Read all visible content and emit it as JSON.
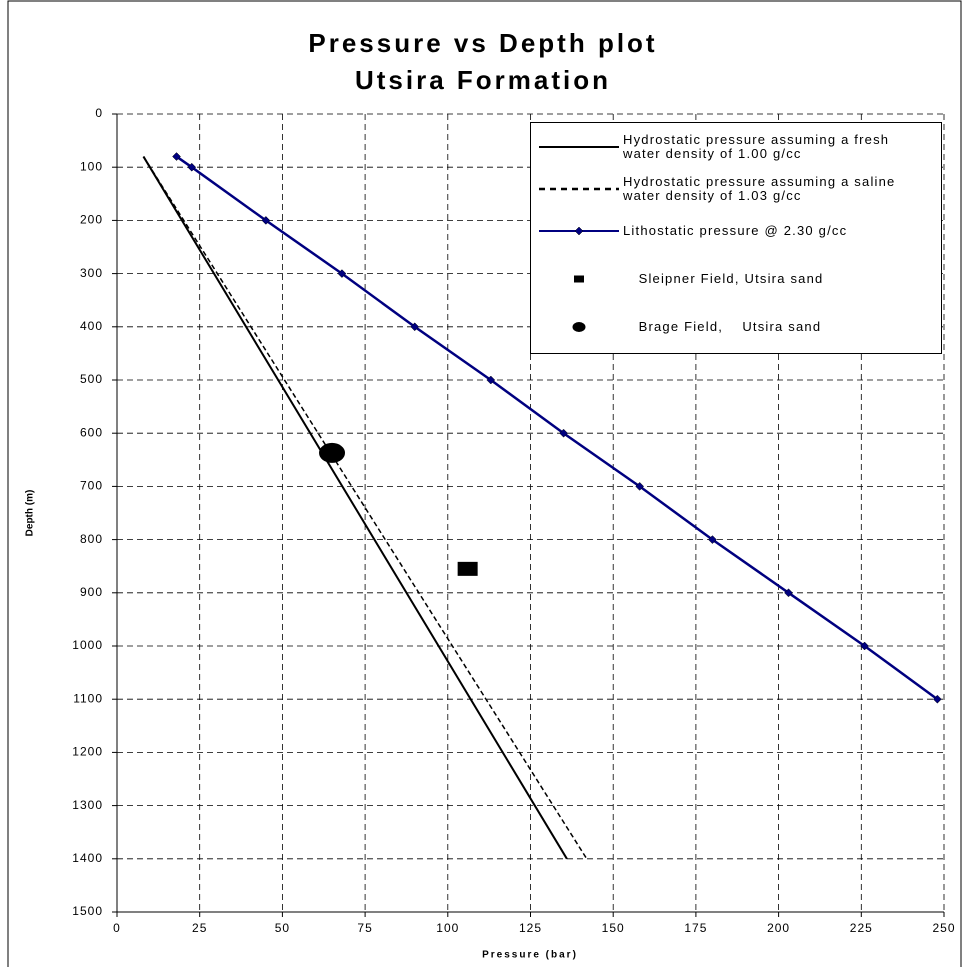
{
  "chart_data": {
    "type": "line",
    "title": "Pressure vs Depth plot",
    "subtitle": "Utsira Formation",
    "x_label": "Pressure (bar)",
    "y_label": "Depth (m)",
    "xlim": [
      0,
      250
    ],
    "xticks": [
      0,
      25,
      50,
      75,
      100,
      125,
      150,
      175,
      200,
      225,
      250
    ],
    "ylim": [
      0,
      1500
    ],
    "yticks": [
      0,
      100,
      200,
      300,
      400,
      500,
      600,
      700,
      800,
      900,
      1000,
      1100,
      1200,
      1300,
      1400,
      1500
    ],
    "y_inverted": true,
    "grid": true,
    "grid_style": "dashed",
    "legend": "upper right",
    "series": [
      {
        "name": "Hydrostatic pressure assuming a fresh water density of 1.00 g/cc",
        "color": "#000000",
        "line_style": "solid",
        "marker": "none",
        "x": [
          8,
          136
        ],
        "values": [
          80,
          1400
        ]
      },
      {
        "name": "Hydrostatic pressure assuming a saline water density of 1.03 g/cc",
        "color": "#000000",
        "line_style": "dashed",
        "marker": "none",
        "x": [
          8,
          142
        ],
        "values": [
          80,
          1400
        ]
      },
      {
        "name": "Lithostatic pressure @ 2.30 g/cc",
        "color": "#000080",
        "line_style": "solid",
        "marker": "diamond",
        "x": [
          18,
          22.6,
          45,
          68,
          90,
          113,
          135,
          158,
          180,
          203,
          226,
          248
        ],
        "values": [
          80,
          100,
          200,
          300,
          400,
          500,
          600,
          700,
          800,
          900,
          1000,
          1100
        ]
      },
      {
        "name": "Sleipner Field, Utsira sand",
        "color": "#000000",
        "line_style": "none",
        "marker": "square",
        "x": [
          106
        ],
        "values": [
          855
        ]
      },
      {
        "name": "Brage Field,    Utsira sand",
        "color": "#000000",
        "line_style": "none",
        "marker": "circle",
        "x": [
          65
        ],
        "values": [
          637
        ]
      }
    ]
  }
}
